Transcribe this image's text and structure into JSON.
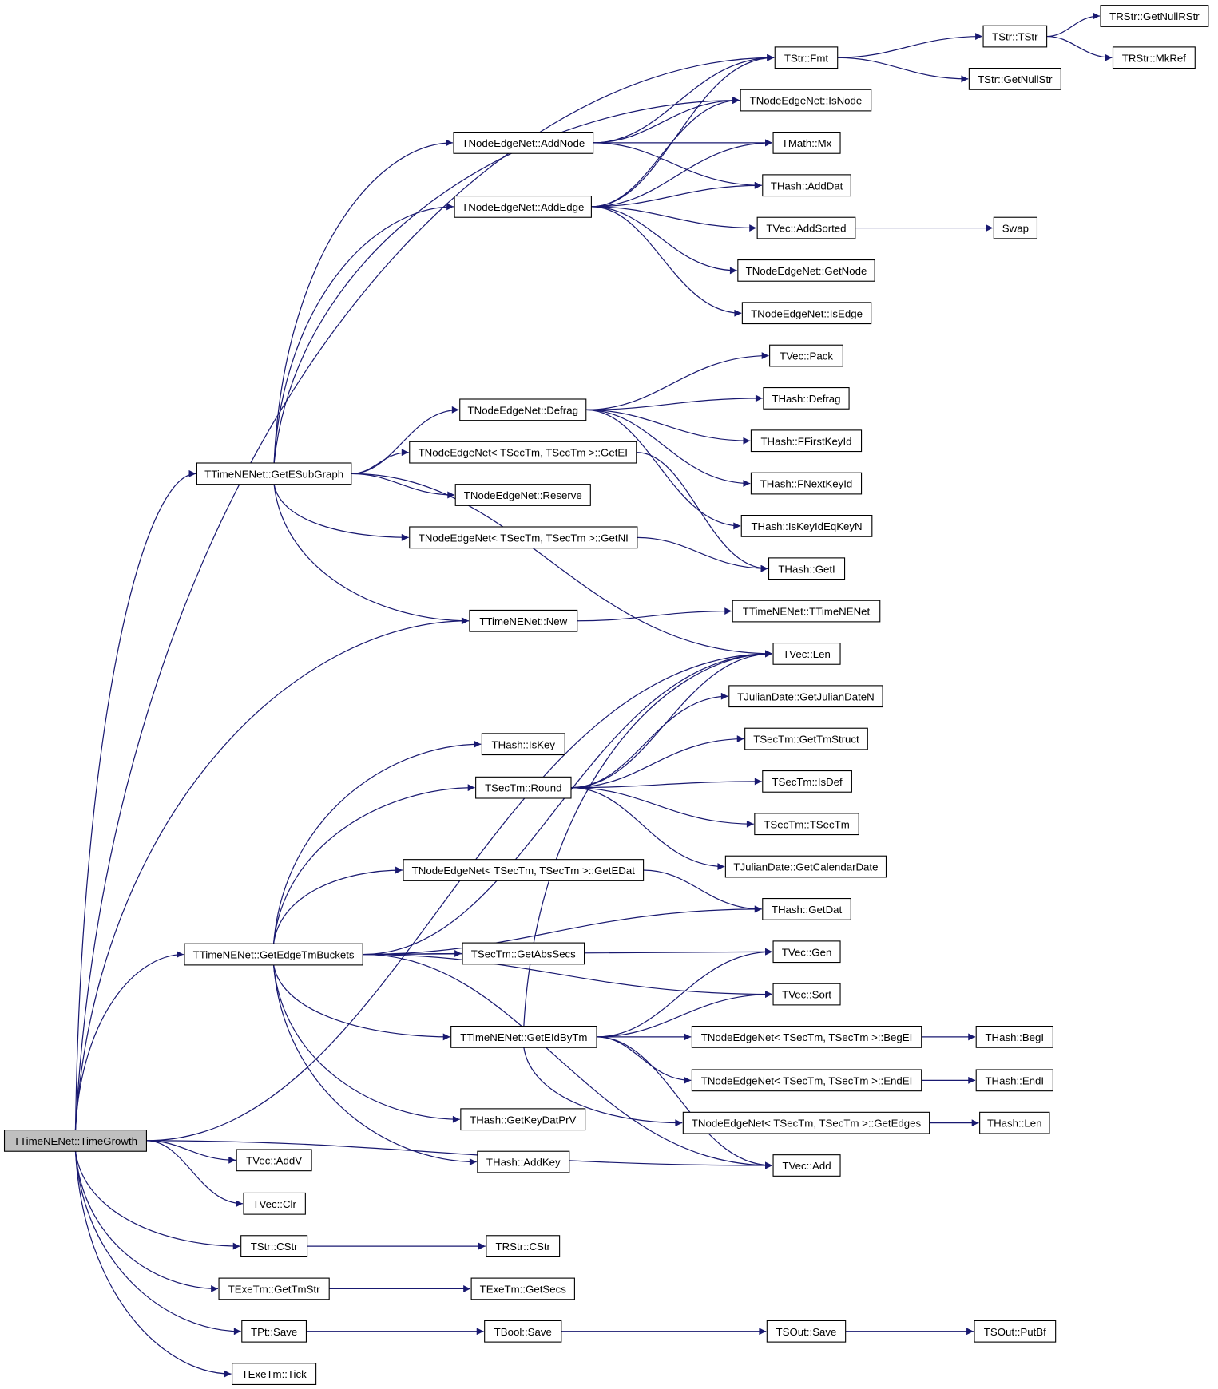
{
  "title": "",
  "colors": {
    "edge": "#191970",
    "node_border": "#000000",
    "node_fill": "#ffffff",
    "root_fill": "#bfbfbf"
  },
  "root": "TTimeNENet::TimeGrowth",
  "nodes": [
    "TTimeNENet::TimeGrowth",
    "TTimeNENet::GetESubGraph",
    "TTimeNENet::GetEdgeTmBuckets",
    "TStr::Fmt",
    "TStr::TStr",
    "TRStr::GetNullRStr",
    "TRStr::MkRef",
    "TStr::GetNullStr",
    "TNodeEdgeNet::IsNode",
    "TNodeEdgeNet::AddNode",
    "TMath::Mx",
    "THash::AddDat",
    "TNodeEdgeNet::AddEdge",
    "TVec::AddSorted",
    "Swap",
    "TNodeEdgeNet::GetNode",
    "TNodeEdgeNet::IsEdge",
    "TVec::Pack",
    "THash::Defrag",
    "TNodeEdgeNet::Defrag",
    "THash::FFirstKeyId",
    "TNodeEdgeNet< TSecTm, TSecTm >::GetEI",
    "THash::FNextKeyId",
    "TNodeEdgeNet::Reserve",
    "THash::IsKeyIdEqKeyN",
    "TNodeEdgeNet< TSecTm, TSecTm >::GetNI",
    "THash::GetI",
    "TTimeNENet::TTimeNENet",
    "TTimeNENet::New",
    "TVec::Len",
    "TJulianDate::GetJulianDateN",
    "TSecTm::GetTmStruct",
    "THash::IsKey",
    "TSecTm::Round",
    "TSecTm::IsDef",
    "TSecTm::TSecTm",
    "TJulianDate::GetCalendarDate",
    "TNodeEdgeNet< TSecTm, TSecTm >::GetEDat",
    "THash::GetDat",
    "TVec::Gen",
    "TSecTm::GetAbsSecs",
    "TVec::Sort",
    "TTimeNENet::GetEIdByTm",
    "TNodeEdgeNet< TSecTm, TSecTm >::BegEI",
    "THash::BegI",
    "TNodeEdgeNet< TSecTm, TSecTm >::EndEI",
    "THash::EndI",
    "TNodeEdgeNet< TSecTm, TSecTm >::GetEdges",
    "THash::Len",
    "THash::GetKeyDatPrV",
    "TVec::Add",
    "THash::AddKey",
    "TVec::AddV",
    "TVec::Clr",
    "TStr::CStr",
    "TRStr::CStr",
    "TExeTm::GetTmStr",
    "TExeTm::GetSecs",
    "TPt::Save",
    "TBool::Save",
    "TSOut::Save",
    "TSOut::PutBf",
    "TExeTm::Tick"
  ],
  "edges": [
    [
      "TTimeNENet::TimeGrowth",
      "TTimeNENet::GetESubGraph"
    ],
    [
      "TTimeNENet::TimeGrowth",
      "TTimeNENet::GetEdgeTmBuckets"
    ],
    [
      "TTimeNENet::TimeGrowth",
      "TStr::Fmt"
    ],
    [
      "TTimeNENet::TimeGrowth",
      "TTimeNENet::New"
    ],
    [
      "TTimeNENet::TimeGrowth",
      "TVec::Len"
    ],
    [
      "TTimeNENet::TimeGrowth",
      "TVec::Add"
    ],
    [
      "TTimeNENet::TimeGrowth",
      "TVec::AddV"
    ],
    [
      "TTimeNENet::TimeGrowth",
      "TVec::Clr"
    ],
    [
      "TTimeNENet::TimeGrowth",
      "TStr::CStr"
    ],
    [
      "TTimeNENet::TimeGrowth",
      "TExeTm::GetTmStr"
    ],
    [
      "TTimeNENet::TimeGrowth",
      "TPt::Save"
    ],
    [
      "TTimeNENet::TimeGrowth",
      "TExeTm::Tick"
    ],
    [
      "TTimeNENet::GetESubGraph",
      "TNodeEdgeNet::IsNode"
    ],
    [
      "TTimeNENet::GetESubGraph",
      "TNodeEdgeNet::AddNode"
    ],
    [
      "TTimeNENet::GetESubGraph",
      "TNodeEdgeNet::AddEdge"
    ],
    [
      "TTimeNENet::GetESubGraph",
      "TNodeEdgeNet::Defrag"
    ],
    [
      "TTimeNENet::GetESubGraph",
      "TNodeEdgeNet< TSecTm, TSecTm >::GetEI"
    ],
    [
      "TTimeNENet::GetESubGraph",
      "TNodeEdgeNet::Reserve"
    ],
    [
      "TTimeNENet::GetESubGraph",
      "TNodeEdgeNet< TSecTm, TSecTm >::GetNI"
    ],
    [
      "TTimeNENet::GetESubGraph",
      "TTimeNENet::New"
    ],
    [
      "TTimeNENet::GetESubGraph",
      "TVec::Len"
    ],
    [
      "TNodeEdgeNet::AddNode",
      "TStr::Fmt"
    ],
    [
      "TNodeEdgeNet::AddNode",
      "TNodeEdgeNet::IsNode"
    ],
    [
      "TNodeEdgeNet::AddNode",
      "TMath::Mx"
    ],
    [
      "TNodeEdgeNet::AddNode",
      "THash::AddDat"
    ],
    [
      "TNodeEdgeNet::AddEdge",
      "TStr::Fmt"
    ],
    [
      "TNodeEdgeNet::AddEdge",
      "TNodeEdgeNet::IsNode"
    ],
    [
      "TNodeEdgeNet::AddEdge",
      "TMath::Mx"
    ],
    [
      "TNodeEdgeNet::AddEdge",
      "THash::AddDat"
    ],
    [
      "TNodeEdgeNet::AddEdge",
      "TVec::AddSorted"
    ],
    [
      "TNodeEdgeNet::AddEdge",
      "TNodeEdgeNet::GetNode"
    ],
    [
      "TNodeEdgeNet::AddEdge",
      "TNodeEdgeNet::IsEdge"
    ],
    [
      "TStr::Fmt",
      "TStr::TStr"
    ],
    [
      "TStr::Fmt",
      "TStr::GetNullStr"
    ],
    [
      "TStr::TStr",
      "TRStr::GetNullRStr"
    ],
    [
      "TStr::TStr",
      "TRStr::MkRef"
    ],
    [
      "TVec::AddSorted",
      "Swap"
    ],
    [
      "TNodeEdgeNet::Defrag",
      "TVec::Pack"
    ],
    [
      "TNodeEdgeNet::Defrag",
      "THash::Defrag"
    ],
    [
      "TNodeEdgeNet::Defrag",
      "THash::FFirstKeyId"
    ],
    [
      "TNodeEdgeNet::Defrag",
      "THash::FNextKeyId"
    ],
    [
      "TNodeEdgeNet::Defrag",
      "THash::IsKeyIdEqKeyN"
    ],
    [
      "TNodeEdgeNet< TSecTm, TSecTm >::GetEI",
      "THash::GetI"
    ],
    [
      "TNodeEdgeNet< TSecTm, TSecTm >::GetNI",
      "THash::GetI"
    ],
    [
      "TTimeNENet::New",
      "TTimeNENet::TTimeNENet"
    ],
    [
      "TTimeNENet::GetEdgeTmBuckets",
      "TVec::Len"
    ],
    [
      "TTimeNENet::GetEdgeTmBuckets",
      "THash::IsKey"
    ],
    [
      "TTimeNENet::GetEdgeTmBuckets",
      "TSecTm::Round"
    ],
    [
      "TTimeNENet::GetEdgeTmBuckets",
      "THash::GetDat"
    ],
    [
      "TTimeNENet::GetEdgeTmBuckets",
      "TNodeEdgeNet< TSecTm, TSecTm >::GetEDat"
    ],
    [
      "TTimeNENet::GetEdgeTmBuckets",
      "TVec::Gen"
    ],
    [
      "TTimeNENet::GetEdgeTmBuckets",
      "TSecTm::GetAbsSecs"
    ],
    [
      "TTimeNENet::GetEdgeTmBuckets",
      "TVec::Sort"
    ],
    [
      "TTimeNENet::GetEdgeTmBuckets",
      "TTimeNENet::GetEIdByTm"
    ],
    [
      "TTimeNENet::GetEdgeTmBuckets",
      "THash::GetKeyDatPrV"
    ],
    [
      "TTimeNENet::GetEdgeTmBuckets",
      "THash::AddKey"
    ],
    [
      "TTimeNENet::GetEdgeTmBuckets",
      "TVec::Add"
    ],
    [
      "TSecTm::Round",
      "TJulianDate::GetJulianDateN"
    ],
    [
      "TSecTm::Round",
      "TSecTm::GetTmStruct"
    ],
    [
      "TSecTm::Round",
      "TSecTm::IsDef"
    ],
    [
      "TSecTm::Round",
      "TSecTm::TSecTm"
    ],
    [
      "TSecTm::Round",
      "TJulianDate::GetCalendarDate"
    ],
    [
      "TSecTm::Round",
      "TVec::Len"
    ],
    [
      "TNodeEdgeNet< TSecTm, TSecTm >::GetEDat",
      "THash::GetDat"
    ],
    [
      "TTimeNENet::GetEIdByTm",
      "TVec::Len"
    ],
    [
      "TTimeNENet::GetEIdByTm",
      "TVec::Gen"
    ],
    [
      "TTimeNENet::GetEIdByTm",
      "TVec::Sort"
    ],
    [
      "TTimeNENet::GetEIdByTm",
      "TNodeEdgeNet< TSecTm, TSecTm >::BegEI"
    ],
    [
      "TTimeNENet::GetEIdByTm",
      "TNodeEdgeNet< TSecTm, TSecTm >::EndEI"
    ],
    [
      "TTimeNENet::GetEIdByTm",
      "TNodeEdgeNet< TSecTm, TSecTm >::GetEdges"
    ],
    [
      "TTimeNENet::GetEIdByTm",
      "TVec::Add"
    ],
    [
      "TNodeEdgeNet< TSecTm, TSecTm >::BegEI",
      "THash::BegI"
    ],
    [
      "TNodeEdgeNet< TSecTm, TSecTm >::EndEI",
      "THash::EndI"
    ],
    [
      "TNodeEdgeNet< TSecTm, TSecTm >::GetEdges",
      "THash::Len"
    ],
    [
      "TStr::CStr",
      "TRStr::CStr"
    ],
    [
      "TExeTm::GetTmStr",
      "TExeTm::GetSecs"
    ],
    [
      "TPt::Save",
      "TBool::Save"
    ],
    [
      "TBool::Save",
      "TSOut::Save"
    ],
    [
      "TSOut::Save",
      "TSOut::PutBf"
    ]
  ]
}
